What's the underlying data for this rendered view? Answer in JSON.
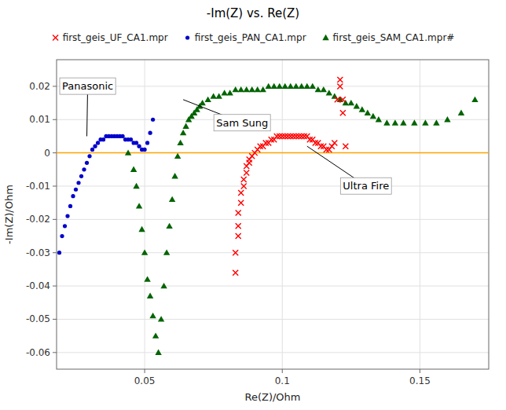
{
  "chart_data": {
    "type": "scatter",
    "title": "-Im(Z) vs. Re(Z)",
    "x_label": "Re(Z)/Ohm",
    "y_label": "-Im(Z)/Ohm",
    "xlim": [
      0.018,
      0.175
    ],
    "ylim": [
      -0.065,
      0.028
    ],
    "xticks": [
      0.05,
      0.1,
      0.15
    ],
    "yticks": [
      -0.06,
      -0.05,
      -0.04,
      -0.03,
      -0.02,
      -0.01,
      0,
      0.01,
      0.02
    ],
    "grid": true,
    "legend": "top",
    "hlines": [
      {
        "value": 0.0,
        "color": "#FFA500"
      }
    ],
    "annotations": [
      {
        "text": "Panasonic",
        "x": 0.029,
        "y": 0.005,
        "text_x": 0.02,
        "text_y": 0.019
      },
      {
        "text": "Sam Sung",
        "x": 0.064,
        "y": 0.016,
        "text_x": 0.076,
        "text_y": 0.008
      },
      {
        "text": "Ultra Fire",
        "x": 0.109,
        "y": 0.002,
        "text_x": 0.122,
        "text_y": -0.011
      }
    ],
    "series": [
      {
        "name": "first_geis_UF_CA1.mpr",
        "color": "#ff0000",
        "marker": "x",
        "x": [
          0.083,
          0.083,
          0.084,
          0.084,
          0.084,
          0.085,
          0.085,
          0.086,
          0.086,
          0.087,
          0.087,
          0.088,
          0.088,
          0.089,
          0.09,
          0.091,
          0.092,
          0.093,
          0.094,
          0.095,
          0.096,
          0.097,
          0.098,
          0.099,
          0.1,
          0.101,
          0.102,
          0.103,
          0.104,
          0.105,
          0.106,
          0.107,
          0.108,
          0.109,
          0.11,
          0.111,
          0.112,
          0.113,
          0.114,
          0.115,
          0.116,
          0.117,
          0.118,
          0.119,
          0.12,
          0.121,
          0.121,
          0.122,
          0.122,
          0.123
        ],
        "values": [
          -0.036,
          -0.03,
          -0.025,
          -0.022,
          -0.018,
          -0.015,
          -0.012,
          -0.01,
          -0.008,
          -0.006,
          -0.004,
          -0.003,
          -0.002,
          -0.001,
          0.0,
          0.001,
          0.002,
          0.002,
          0.003,
          0.003,
          0.004,
          0.004,
          0.005,
          0.005,
          0.005,
          0.005,
          0.005,
          0.005,
          0.005,
          0.005,
          0.005,
          0.005,
          0.005,
          0.005,
          0.004,
          0.004,
          0.003,
          0.003,
          0.002,
          0.002,
          0.001,
          0.001,
          0.002,
          0.003,
          0.016,
          0.022,
          0.02,
          0.016,
          0.012,
          0.002
        ]
      },
      {
        "name": "first_geis_PAN_CA1.mpr",
        "color": "#0000cc",
        "marker": "circle",
        "x": [
          0.019,
          0.02,
          0.021,
          0.022,
          0.023,
          0.024,
          0.025,
          0.026,
          0.027,
          0.028,
          0.029,
          0.03,
          0.031,
          0.032,
          0.033,
          0.034,
          0.035,
          0.036,
          0.037,
          0.038,
          0.039,
          0.04,
          0.041,
          0.042,
          0.043,
          0.044,
          0.045,
          0.046,
          0.047,
          0.048,
          0.049,
          0.05,
          0.051,
          0.052,
          0.053
        ],
        "values": [
          -0.03,
          -0.025,
          -0.022,
          -0.019,
          -0.016,
          -0.013,
          -0.011,
          -0.009,
          -0.007,
          -0.005,
          -0.003,
          -0.001,
          0.001,
          0.002,
          0.003,
          0.004,
          0.004,
          0.005,
          0.005,
          0.005,
          0.005,
          0.005,
          0.005,
          0.005,
          0.004,
          0.004,
          0.004,
          0.003,
          0.003,
          0.002,
          0.001,
          0.001,
          0.003,
          0.006,
          0.01
        ]
      },
      {
        "name": "first_geis_SAM_CA1.mpr#",
        "color": "#006400",
        "marker": "triangle",
        "x": [
          0.044,
          0.046,
          0.047,
          0.048,
          0.049,
          0.05,
          0.051,
          0.052,
          0.053,
          0.054,
          0.055,
          0.056,
          0.057,
          0.058,
          0.059,
          0.06,
          0.061,
          0.062,
          0.063,
          0.064,
          0.065,
          0.066,
          0.067,
          0.068,
          0.069,
          0.07,
          0.071,
          0.073,
          0.075,
          0.077,
          0.079,
          0.081,
          0.083,
          0.085,
          0.087,
          0.089,
          0.091,
          0.093,
          0.095,
          0.097,
          0.099,
          0.101,
          0.103,
          0.105,
          0.107,
          0.109,
          0.111,
          0.113,
          0.115,
          0.117,
          0.119,
          0.121,
          0.123,
          0.125,
          0.127,
          0.129,
          0.131,
          0.133,
          0.135,
          0.138,
          0.141,
          0.144,
          0.148,
          0.152,
          0.156,
          0.16,
          0.165,
          0.17
        ],
        "values": [
          0.0,
          -0.005,
          -0.01,
          -0.016,
          -0.023,
          -0.03,
          -0.038,
          -0.043,
          -0.049,
          -0.055,
          -0.06,
          -0.05,
          -0.04,
          -0.03,
          -0.022,
          -0.014,
          -0.007,
          -0.001,
          0.003,
          0.006,
          0.008,
          0.01,
          0.011,
          0.012,
          0.013,
          0.014,
          0.015,
          0.016,
          0.017,
          0.017,
          0.018,
          0.018,
          0.019,
          0.019,
          0.019,
          0.019,
          0.019,
          0.019,
          0.02,
          0.02,
          0.02,
          0.02,
          0.02,
          0.02,
          0.02,
          0.02,
          0.02,
          0.019,
          0.019,
          0.018,
          0.017,
          0.016,
          0.015,
          0.015,
          0.014,
          0.013,
          0.012,
          0.011,
          0.01,
          0.009,
          0.009,
          0.009,
          0.009,
          0.009,
          0.009,
          0.01,
          0.012,
          0.016
        ]
      }
    ]
  }
}
